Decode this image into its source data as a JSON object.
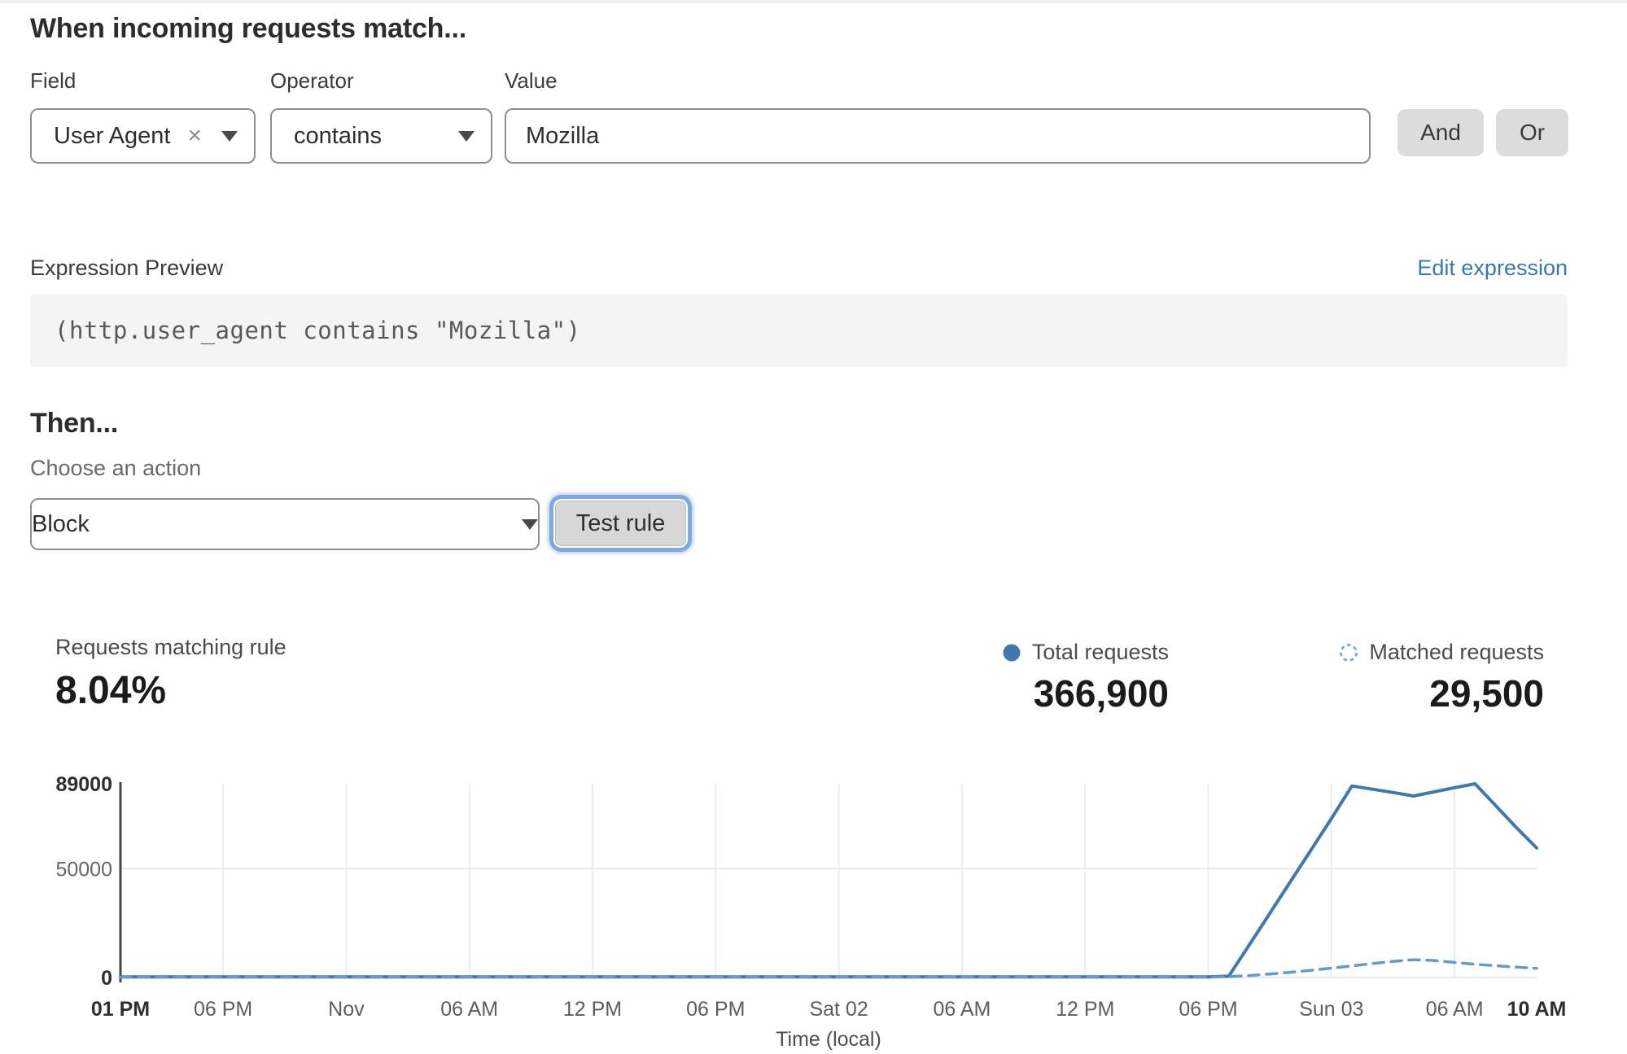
{
  "colors": {
    "accent_blue": "#3e78ad",
    "link_blue": "#3b76b0"
  },
  "rule_builder": {
    "title": "When incoming requests match...",
    "field": {
      "label": "Field",
      "value": "User Agent",
      "clear_icon": "×"
    },
    "operator": {
      "label": "Operator",
      "value": "contains"
    },
    "value": {
      "label": "Value",
      "value": "Mozilla"
    },
    "and_button": "And",
    "or_button": "Or"
  },
  "expression": {
    "label": "Expression Preview",
    "edit_link": "Edit expression",
    "code": "(http.user_agent contains \"Mozilla\")"
  },
  "action": {
    "title": "Then...",
    "label": "Choose an action",
    "value": "Block",
    "test_button": "Test rule"
  },
  "stats": {
    "matching_label": "Requests matching rule",
    "matching_value": "8.04%",
    "total_label": "Total requests",
    "total_value": "366,900",
    "matched_label": "Matched requests",
    "matched_value": "29,500"
  },
  "chart_data": {
    "type": "line",
    "xlabel": "Time (local)",
    "ylabel": "",
    "x_unit": "hours elapsed from first tick (01 PM) to last tick (10 AM)",
    "x_range_hours": [
      0,
      69
    ],
    "ylim": [
      0,
      89000
    ],
    "grid": true,
    "legend_position": "above-right",
    "y_ticks": [
      {
        "value": 0,
        "label": "0",
        "bold": true
      },
      {
        "value": 50000,
        "label": "50000",
        "bold": false
      },
      {
        "value": 89000,
        "label": "89000",
        "bold": true
      }
    ],
    "x_ticks": [
      {
        "hour": 0,
        "label": "01 PM",
        "bold": true
      },
      {
        "hour": 5,
        "label": "06 PM",
        "bold": false
      },
      {
        "hour": 11,
        "label": "Nov",
        "bold": false
      },
      {
        "hour": 17,
        "label": "06 AM",
        "bold": false
      },
      {
        "hour": 23,
        "label": "12 PM",
        "bold": false
      },
      {
        "hour": 29,
        "label": "06 PM",
        "bold": false
      },
      {
        "hour": 35,
        "label": "Sat 02",
        "bold": false
      },
      {
        "hour": 41,
        "label": "06 AM",
        "bold": false
      },
      {
        "hour": 47,
        "label": "12 PM",
        "bold": false
      },
      {
        "hour": 53,
        "label": "06 PM",
        "bold": false
      },
      {
        "hour": 59,
        "label": "Sun 03",
        "bold": false
      },
      {
        "hour": 65,
        "label": "06 AM",
        "bold": false
      },
      {
        "hour": 69,
        "label": "10 AM",
        "bold": true
      }
    ],
    "series": [
      {
        "name": "Total requests",
        "style": "solid",
        "color": "#3e78ad",
        "points": [
          [
            0,
            300
          ],
          [
            6,
            300
          ],
          [
            12,
            300
          ],
          [
            18,
            300
          ],
          [
            24,
            300
          ],
          [
            30,
            300
          ],
          [
            36,
            300
          ],
          [
            42,
            300
          ],
          [
            48,
            300
          ],
          [
            53,
            300
          ],
          [
            54,
            600
          ],
          [
            55,
            15000
          ],
          [
            56,
            29500
          ],
          [
            57,
            44000
          ],
          [
            58,
            58500
          ],
          [
            59,
            73000
          ],
          [
            60,
            88000
          ],
          [
            61,
            86500
          ],
          [
            62,
            85000
          ],
          [
            63,
            83400
          ],
          [
            64,
            85300
          ],
          [
            65,
            87200
          ],
          [
            66,
            89000
          ],
          [
            67,
            79000
          ],
          [
            68,
            69000
          ],
          [
            69,
            59500
          ]
        ]
      },
      {
        "name": "Matched requests",
        "style": "dashed",
        "color": "#639bce",
        "points": [
          [
            0,
            150
          ],
          [
            6,
            150
          ],
          [
            12,
            150
          ],
          [
            18,
            150
          ],
          [
            24,
            150
          ],
          [
            30,
            150
          ],
          [
            36,
            150
          ],
          [
            42,
            150
          ],
          [
            48,
            150
          ],
          [
            53,
            150
          ],
          [
            54,
            400
          ],
          [
            55,
            900
          ],
          [
            56,
            1600
          ],
          [
            57,
            2400
          ],
          [
            58,
            3300
          ],
          [
            59,
            4300
          ],
          [
            60,
            5300
          ],
          [
            61,
            6400
          ],
          [
            62,
            7400
          ],
          [
            63,
            8200
          ],
          [
            64,
            7800
          ],
          [
            65,
            6900
          ],
          [
            66,
            6100
          ],
          [
            67,
            5400
          ],
          [
            68,
            4800
          ],
          [
            69,
            4200
          ]
        ]
      }
    ]
  }
}
